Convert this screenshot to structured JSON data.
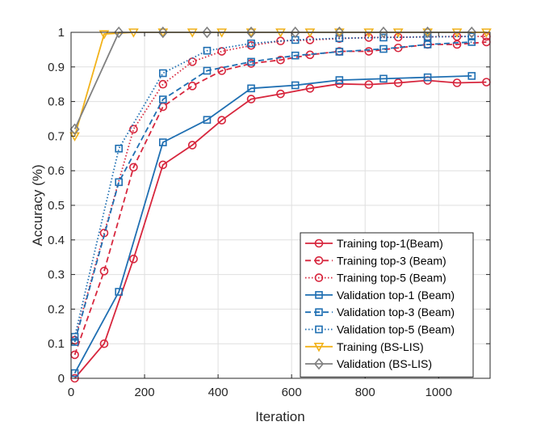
{
  "chart_data": {
    "type": "line",
    "xlabel": "Iteration",
    "ylabel": "Accuracy (%)",
    "xlim": [
      0,
      1140
    ],
    "ylim": [
      0,
      1
    ],
    "xticks": [
      0,
      200,
      400,
      600,
      800,
      1000
    ],
    "yticks": [
      0,
      0.1,
      0.2,
      0.3,
      0.4,
      0.5,
      0.6,
      0.7,
      0.8,
      0.9,
      1
    ],
    "grid": true,
    "legend_position": "bottom-right",
    "series": [
      {
        "name": "Training top-1(Beam)",
        "color": "#d7263d",
        "dash": "solid",
        "marker": "circle",
        "x": [
          10,
          90,
          170,
          250,
          330,
          410,
          490,
          570,
          650,
          730,
          810,
          890,
          970,
          1050,
          1130
        ],
        "y": [
          0.0,
          0.1,
          0.345,
          0.617,
          0.674,
          0.746,
          0.807,
          0.822,
          0.838,
          0.851,
          0.849,
          0.854,
          0.861,
          0.854,
          0.856
        ]
      },
      {
        "name": "Training top-3 (Beam)",
        "color": "#d7263d",
        "dash": "dashed",
        "marker": "circle",
        "x": [
          10,
          90,
          170,
          250,
          330,
          410,
          490,
          570,
          650,
          730,
          810,
          890,
          970,
          1050,
          1130
        ],
        "y": [
          0.068,
          0.31,
          0.61,
          0.785,
          0.845,
          0.889,
          0.91,
          0.92,
          0.935,
          0.945,
          0.945,
          0.955,
          0.965,
          0.965,
          0.972
        ]
      },
      {
        "name": "Training top-5 (Beam)",
        "color": "#d7263d",
        "dash": "dotted",
        "marker": "circle",
        "x": [
          10,
          90,
          170,
          250,
          330,
          410,
          490,
          570,
          650,
          730,
          810,
          890,
          970,
          1050,
          1130
        ],
        "y": [
          0.11,
          0.42,
          0.72,
          0.85,
          0.915,
          0.945,
          0.962,
          0.975,
          0.978,
          0.982,
          0.985,
          0.986,
          0.987,
          0.988,
          0.988
        ]
      },
      {
        "name": "Validation top-1 (Beam)",
        "color": "#1f6fb2",
        "dash": "solid",
        "marker": "square",
        "x": [
          10,
          130,
          250,
          370,
          490,
          610,
          730,
          850,
          970,
          1090
        ],
        "y": [
          0.015,
          0.25,
          0.682,
          0.747,
          0.838,
          0.847,
          0.862,
          0.866,
          0.87,
          0.874
        ]
      },
      {
        "name": "Validation top-3 (Beam)",
        "color": "#1f6fb2",
        "dash": "dashed",
        "marker": "square",
        "x": [
          10,
          130,
          250,
          370,
          490,
          610,
          730,
          850,
          970,
          1090
        ],
        "y": [
          0.105,
          0.567,
          0.806,
          0.889,
          0.915,
          0.933,
          0.944,
          0.952,
          0.965,
          0.972
        ]
      },
      {
        "name": "Validation top-5 (Beam)",
        "color": "#1f6fb2",
        "dash": "dotted",
        "marker": "square",
        "x": [
          10,
          130,
          250,
          370,
          490,
          610,
          730,
          850,
          970,
          1090
        ],
        "y": [
          0.12,
          0.664,
          0.882,
          0.947,
          0.968,
          0.978,
          0.983,
          0.985,
          0.987,
          0.988
        ]
      },
      {
        "name": "Training (BS-LIS)",
        "color": "#f2b21a",
        "dash": "solid",
        "marker": "triangle-down",
        "x": [
          10,
          90,
          170,
          250,
          330,
          410,
          490,
          570,
          650,
          730,
          810,
          890,
          970,
          1050,
          1130
        ],
        "y": [
          0.7,
          0.995,
          1.0,
          1.0,
          1.0,
          1.0,
          1.0,
          1.0,
          1.0,
          1.0,
          1.0,
          1.0,
          1.0,
          1.0,
          1.0
        ]
      },
      {
        "name": "Validation (BS-LIS)",
        "color": "#808080",
        "dash": "solid",
        "marker": "diamond",
        "x": [
          10,
          130,
          250,
          370,
          490,
          610,
          730,
          850,
          970,
          1090
        ],
        "y": [
          0.72,
          1.0,
          1.0,
          1.0,
          1.0,
          1.0,
          1.0,
          1.0,
          1.0,
          1.0
        ]
      }
    ]
  }
}
